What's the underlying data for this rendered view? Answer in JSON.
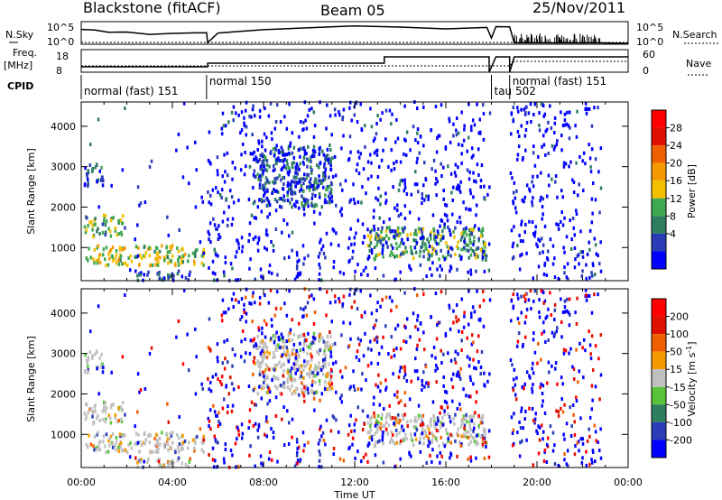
{
  "header": {
    "radar": "Blackstone (fitACF)",
    "beam": "Beam 05",
    "date": "25/Nov/2011"
  },
  "noise_panel": {
    "left_label": "N.Sky",
    "right_label": "N.Search",
    "left_ticks": [
      "10^5",
      "10^0"
    ],
    "right_ticks": [
      "10^5",
      "10^0"
    ]
  },
  "freq_panel": {
    "left_label_1": "Freq.",
    "left_label_2": "[MHz]",
    "right_label": "Nave",
    "left_ticks": [
      "18",
      "8"
    ],
    "right_ticks": [
      "60",
      "0"
    ]
  },
  "cpid": {
    "label": "CPID",
    "modes": [
      {
        "name": "normal (fast) 151",
        "start_hour": 0.0
      },
      {
        "name": "normal 150",
        "start_hour": 5.5
      },
      {
        "name": "tau 502",
        "start_hour": 18.0
      },
      {
        "name": "normal (fast) 151",
        "start_hour": 18.8
      }
    ]
  },
  "colors": {
    "power": [
      "#0000ff",
      "#2a3cb8",
      "#2e7d5e",
      "#3fa94f",
      "#f2c000",
      "#f59a00",
      "#f06000",
      "#e01000",
      "#ff0000"
    ],
    "velocity": [
      "#0000ff",
      "#2a3cb8",
      "#2e7d5e",
      "#57c43a",
      "#c0c0c0",
      "#f59a00",
      "#f06000",
      "#e01000",
      "#ff0000"
    ]
  },
  "chart_data": [
    {
      "type": "heatmap",
      "name": "power",
      "ylabel": "Slant Range [km]",
      "xlim": [
        0,
        24
      ],
      "ylim": [
        180,
        4600
      ],
      "yticks": [
        "1000",
        "2000",
        "3000",
        "4000"
      ],
      "colorbar": {
        "label": "Power [dB]",
        "ticks": [
          "28",
          "24",
          "20",
          "16",
          "12",
          "8",
          "4"
        ],
        "range": [
          0,
          30
        ]
      },
      "bands": [
        {
          "t0": 0.15,
          "t1": 5.45,
          "r0": 550,
          "r1": 1050,
          "value": 14
        },
        {
          "t0": 0.1,
          "t1": 1.8,
          "r0": 1250,
          "r1": 1800,
          "value": 11
        },
        {
          "t0": 0.1,
          "t1": 0.9,
          "r0": 2500,
          "r1": 3100,
          "value": 6
        },
        {
          "t0": 2.4,
          "t1": 4.8,
          "r0": 180,
          "r1": 400,
          "value": 5
        },
        {
          "t0": 7.5,
          "t1": 11.0,
          "r0": 2000,
          "r1": 3500,
          "value": 6
        },
        {
          "t0": 12.5,
          "t1": 17.8,
          "r0": 700,
          "r1": 1500,
          "value": 10
        }
      ]
    },
    {
      "type": "heatmap",
      "name": "velocity",
      "xlabel": "Time UT",
      "xlim": [
        0,
        24
      ],
      "ylim": [
        180,
        4600
      ],
      "xticks": [
        "00:00",
        "04:00",
        "08:00",
        "12:00",
        "16:00",
        "20:00",
        "00:00"
      ],
      "yticks": [
        "1000",
        "2000",
        "3000",
        "4000"
      ],
      "colorbar": {
        "label": "Velocity [m s^-1]",
        "ticks": [
          "200",
          "100",
          "50",
          "15",
          "-15",
          "-50",
          "-100",
          "-200"
        ],
        "range": [
          -250,
          250
        ]
      }
    }
  ]
}
